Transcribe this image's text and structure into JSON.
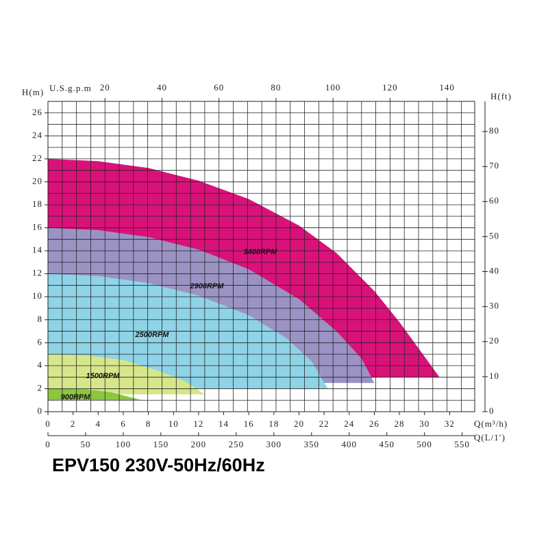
{
  "chart_data": {
    "type": "area",
    "title": "EPV150 230V-50Hz/60Hz",
    "y_label": "H(m)",
    "x_label": "Q(m³/h)",
    "x2_label": "U.S.g.p.m",
    "x3_label": "Q(L/1′)",
    "y2_label": "H(ft)",
    "xlim": [
      0,
      34
    ],
    "xticks": [
      0,
      2,
      4,
      6,
      8,
      10,
      12,
      14,
      16,
      18,
      20,
      22,
      24,
      26,
      28,
      30,
      32
    ],
    "ylim": [
      0,
      27
    ],
    "yticks": [
      0,
      2,
      4,
      6,
      8,
      10,
      12,
      14,
      16,
      18,
      20,
      22,
      24,
      26
    ],
    "x2lim": [
      0,
      149.7
    ],
    "x2ticks": [
      20,
      40,
      60,
      80,
      100,
      120,
      140
    ],
    "x3lim": [
      0,
      566.7
    ],
    "x3ticks": [
      0,
      50,
      100,
      150,
      200,
      250,
      300,
      350,
      400,
      450,
      500,
      550
    ],
    "y2lim": [
      0,
      88.6
    ],
    "y2ticks": [
      0,
      10,
      20,
      30,
      40,
      50,
      60,
      70,
      80
    ],
    "grid": true,
    "series": [
      {
        "name": "3400RPM",
        "color": "#d9127a",
        "x": [
          0,
          0,
          4,
          8,
          12,
          16,
          20,
          23,
          26,
          28,
          30,
          31.2
        ],
        "values": [
          3,
          22,
          21.8,
          21.2,
          20.1,
          18.5,
          16.2,
          13.8,
          10.5,
          7.8,
          4.8,
          3
        ]
      },
      {
        "name": "2900RPM",
        "color": "#9b93c4",
        "x": [
          0,
          0,
          4,
          8,
          12,
          16,
          20,
          23,
          25,
          26
        ],
        "values": [
          2.5,
          16,
          15.8,
          15.2,
          14.1,
          12.4,
          9.8,
          7,
          4.6,
          2.5
        ]
      },
      {
        "name": "2500RPM",
        "color": "#8fd3e6",
        "x": [
          0,
          0,
          4,
          8,
          12,
          16,
          19,
          21,
          22.3
        ],
        "values": [
          2,
          12,
          11.8,
          11.2,
          10.1,
          8.4,
          6.4,
          4.4,
          2
        ]
      },
      {
        "name": "1500RPM",
        "color": "#d6e68a",
        "x": [
          0,
          0,
          3,
          6,
          9,
          11,
          12.5
        ],
        "values": [
          1.5,
          5,
          4.9,
          4.5,
          3.5,
          2.6,
          1.5
        ]
      },
      {
        "name": "900RPM",
        "color": "#8cc63f",
        "x": [
          0,
          0,
          3,
          5,
          7.5
        ],
        "values": [
          1,
          2,
          1.95,
          1.7,
          1
        ]
      }
    ]
  }
}
